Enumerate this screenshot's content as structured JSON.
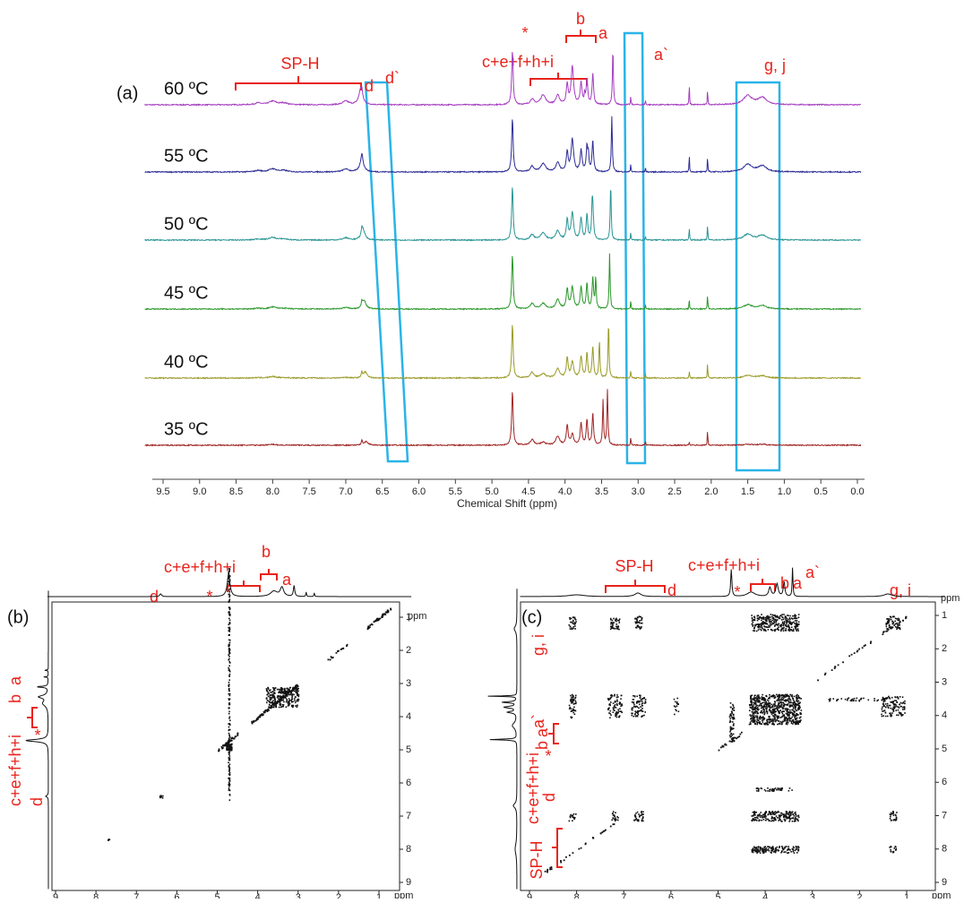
{
  "panel_a": {
    "label": "(a)",
    "axis_title": "Chemical Shift (ppm)",
    "ticks": [
      "9.5",
      "9.0",
      "8.5",
      "8.0",
      "7.5",
      "7.0",
      "6.5",
      "6.0",
      "5.5",
      "5.0",
      "4.5",
      "4.0",
      "3.5",
      "3.0",
      "2.5",
      "2.0",
      "1.5",
      "1.0",
      "0.5",
      "0.0"
    ],
    "traces": [
      {
        "name": "60 ºC",
        "color": "#a43cc0"
      },
      {
        "name": "55 ºC",
        "color": "#2c2c96"
      },
      {
        "name": "50 ºC",
        "color": "#2a9494"
      },
      {
        "name": "45 ºC",
        "color": "#2a962a"
      },
      {
        "name": "40 ºC",
        "color": "#9a9a28"
      },
      {
        "name": "35 ºC",
        "color": "#a02424"
      }
    ],
    "annotations": {
      "sp_h": "SP-H",
      "d": "d",
      "d_prime": "d`",
      "star": "*",
      "cefhi": "c+e+f+h+i",
      "b": "b",
      "a": "a",
      "a_prime": "a`",
      "gj": "g, j"
    }
  },
  "panel_b": {
    "label": "(b)",
    "unit_top": "ppm",
    "unit_bottom": "ppm",
    "ticks": [
      9,
      8,
      7,
      6,
      5,
      4,
      3,
      2,
      1
    ],
    "top_annotations": {
      "d": "d",
      "star": "*",
      "cefhi": "c+e+f+h+i",
      "b": "b",
      "a": "a"
    },
    "left_annotations": {
      "a": "a",
      "b": "b",
      "star": "*",
      "cefhi": "c+e+f+h+i",
      "d": "d"
    }
  },
  "panel_c": {
    "label": "(c)",
    "unit_top": "ppm",
    "unit_bottom": "ppm",
    "ticks": [
      9,
      8,
      7,
      6,
      5,
      4,
      3,
      2,
      1
    ],
    "top_annotations": {
      "sp_h": "SP-H",
      "d": "d",
      "star": "*",
      "cefhi": "c+e+f+h+i",
      "b": "b",
      "a": "a",
      "a_prime": "a`",
      "gi": "g, i"
    },
    "left_annotations": {
      "gi": "g, i",
      "a_prime": "a`",
      "b": "b",
      "a": "a",
      "star": "*",
      "cefhi": "c+e+f+h+i",
      "d": "d",
      "sp_h": "SP-H"
    }
  }
}
